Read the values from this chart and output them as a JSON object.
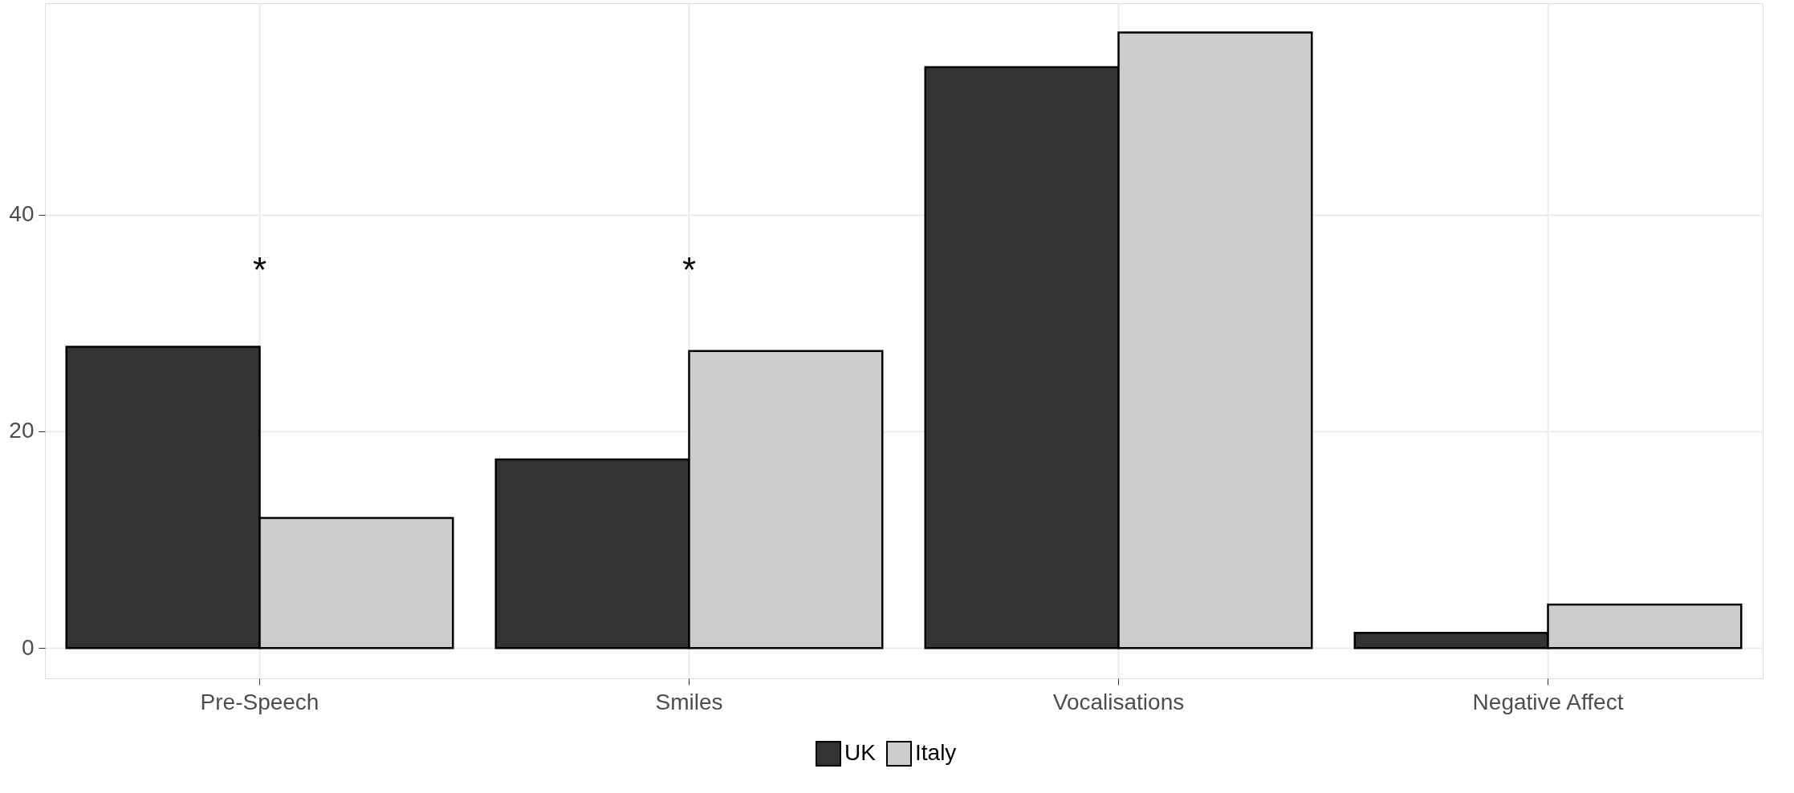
{
  "chart_data": {
    "type": "bar",
    "categories": [
      "Pre-Speech",
      "Smiles",
      "Vocalisations",
      "Negative Affect"
    ],
    "series": [
      {
        "name": "UK",
        "color": "#333333",
        "values": [
          27.8,
          17.4,
          53.6,
          1.4
        ]
      },
      {
        "name": "Italy",
        "color": "#cccccc",
        "values": [
          12.0,
          27.4,
          56.8,
          4.0
        ]
      }
    ],
    "ylim": [
      -2.8,
      59.5
    ],
    "yticks": [
      0,
      20,
      40
    ],
    "grid": true,
    "legend": "bottom",
    "annotations": [
      "*",
      "*"
    ]
  }
}
